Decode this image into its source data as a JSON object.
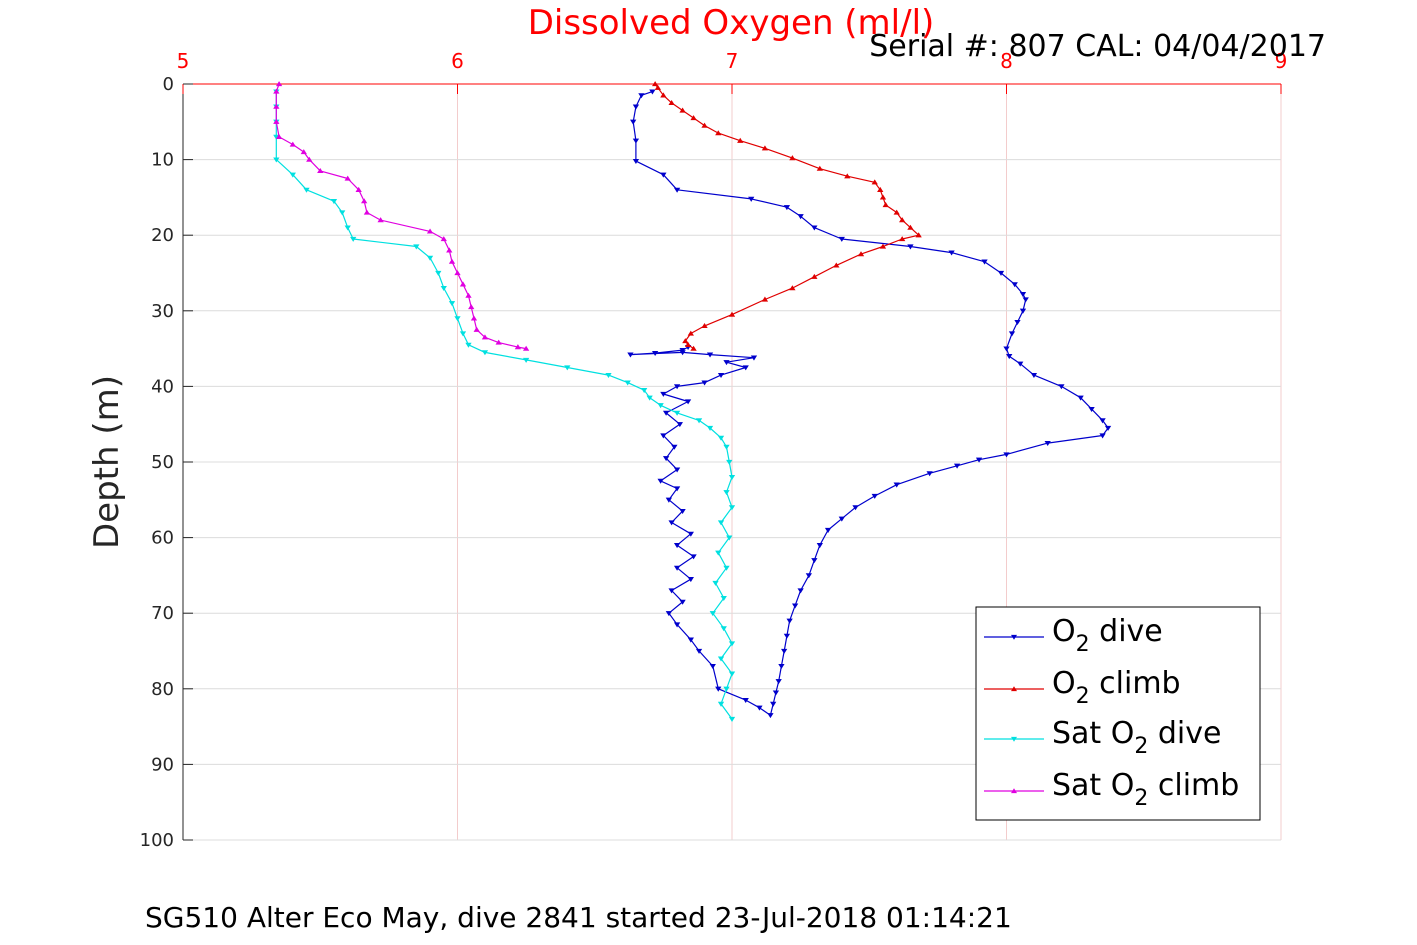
{
  "chart_data": {
    "type": "line",
    "title": "Dissolved Oxygen (ml/l)",
    "serial_label": "Serial #: 807  CAL: 04/04/2017",
    "caption": "SG510 Alter Eco May, dive 2841 started 23-Jul-2018 01:14:21",
    "ylabel": "Depth (m)",
    "xlim": [
      5,
      9
    ],
    "ylim": [
      0,
      100
    ],
    "y_reversed": true,
    "x_axis_position": "top",
    "xticks": [
      5,
      6,
      7,
      8,
      9
    ],
    "yticks": [
      0,
      10,
      20,
      30,
      40,
      50,
      60,
      70,
      80,
      90,
      100
    ],
    "grid": true,
    "legend_position": "lower-right",
    "legend": [
      "O2 dive",
      "O2 climb",
      "Sat O2 dive",
      "Sat O2 climb"
    ],
    "series": [
      {
        "name": "O2 dive",
        "color": "#0000cc",
        "marker": "triangle-down",
        "points": [
          [
            6.71,
            1
          ],
          [
            6.67,
            1.5
          ],
          [
            6.65,
            3
          ],
          [
            6.64,
            5
          ],
          [
            6.65,
            7.5
          ],
          [
            6.65,
            10.2
          ],
          [
            6.75,
            12
          ],
          [
            6.8,
            14
          ],
          [
            7.07,
            15.2
          ],
          [
            7.2,
            16.3
          ],
          [
            7.25,
            17.5
          ],
          [
            7.3,
            19
          ],
          [
            7.4,
            20.5
          ],
          [
            7.65,
            21.5
          ],
          [
            7.8,
            22.3
          ],
          [
            7.92,
            23.5
          ],
          [
            7.98,
            25
          ],
          [
            8.03,
            26.5
          ],
          [
            8.06,
            27.8
          ],
          [
            8.07,
            28.5
          ],
          [
            8.06,
            30
          ],
          [
            8.04,
            31.5
          ],
          [
            8.02,
            33
          ],
          [
            8.0,
            35
          ],
          [
            8.01,
            36
          ],
          [
            8.05,
            37
          ],
          [
            8.1,
            38.5
          ],
          [
            8.2,
            40
          ],
          [
            8.27,
            41.5
          ],
          [
            8.31,
            43
          ],
          [
            8.35,
            44.5
          ],
          [
            8.37,
            45.5
          ],
          [
            8.35,
            46.5
          ],
          [
            8.15,
            47.5
          ],
          [
            8.0,
            49
          ],
          [
            7.9,
            49.7
          ],
          [
            7.82,
            50.5
          ],
          [
            7.72,
            51.5
          ],
          [
            7.6,
            53
          ],
          [
            7.52,
            54.5
          ],
          [
            7.45,
            56
          ],
          [
            7.4,
            57.5
          ],
          [
            7.35,
            59
          ],
          [
            7.32,
            61
          ],
          [
            7.3,
            63
          ],
          [
            7.28,
            65
          ],
          [
            7.25,
            67
          ],
          [
            7.23,
            69
          ],
          [
            7.21,
            71
          ],
          [
            7.2,
            73
          ],
          [
            7.19,
            75
          ],
          [
            7.18,
            77
          ],
          [
            7.17,
            79
          ],
          [
            7.16,
            80.5
          ],
          [
            7.15,
            82
          ],
          [
            7.14,
            83.5
          ],
          [
            7.1,
            82.5
          ],
          [
            7.05,
            81.5
          ],
          [
            6.95,
            80
          ],
          [
            6.93,
            77
          ],
          [
            6.88,
            75
          ],
          [
            6.85,
            73.5
          ],
          [
            6.8,
            71.5
          ],
          [
            6.77,
            70
          ],
          [
            6.82,
            68.5
          ],
          [
            6.78,
            67
          ],
          [
            6.85,
            65.5
          ],
          [
            6.8,
            64
          ],
          [
            6.86,
            62.5
          ],
          [
            6.8,
            61
          ],
          [
            6.85,
            59.5
          ],
          [
            6.78,
            58
          ],
          [
            6.82,
            56.5
          ],
          [
            6.77,
            55
          ],
          [
            6.8,
            53.5
          ],
          [
            6.74,
            52.5
          ],
          [
            6.8,
            51
          ],
          [
            6.76,
            49.5
          ],
          [
            6.79,
            48
          ],
          [
            6.75,
            46.5
          ],
          [
            6.81,
            45
          ],
          [
            6.76,
            43.5
          ],
          [
            6.84,
            42
          ],
          [
            6.75,
            41
          ],
          [
            6.8,
            40
          ],
          [
            6.9,
            39.5
          ],
          [
            6.96,
            38.5
          ],
          [
            7.05,
            37.5
          ],
          [
            6.98,
            36.8
          ],
          [
            7.08,
            36.2
          ],
          [
            6.92,
            35.8
          ],
          [
            6.82,
            35.5
          ],
          [
            6.63,
            35.8
          ],
          [
            6.72,
            35.6
          ],
          [
            6.82,
            35.2
          ],
          [
            6.84,
            34.8
          ]
        ]
      },
      {
        "name": "O2 climb",
        "color": "#e00000",
        "marker": "triangle-up",
        "points": [
          [
            6.72,
            0
          ],
          [
            6.73,
            0.5
          ],
          [
            6.75,
            1.5
          ],
          [
            6.78,
            2.5
          ],
          [
            6.82,
            3.5
          ],
          [
            6.86,
            4.5
          ],
          [
            6.9,
            5.5
          ],
          [
            6.95,
            6.5
          ],
          [
            7.03,
            7.5
          ],
          [
            7.12,
            8.5
          ],
          [
            7.22,
            9.8
          ],
          [
            7.32,
            11.2
          ],
          [
            7.42,
            12.2
          ],
          [
            7.52,
            13
          ],
          [
            7.54,
            14
          ],
          [
            7.55,
            15
          ],
          [
            7.56,
            16
          ],
          [
            7.6,
            17
          ],
          [
            7.62,
            18
          ],
          [
            7.65,
            19
          ],
          [
            7.68,
            20
          ],
          [
            7.62,
            20.5
          ],
          [
            7.55,
            21.5
          ],
          [
            7.47,
            22.5
          ],
          [
            7.38,
            24
          ],
          [
            7.3,
            25.5
          ],
          [
            7.22,
            27
          ],
          [
            7.12,
            28.5
          ],
          [
            7.0,
            30.5
          ],
          [
            6.9,
            32
          ],
          [
            6.85,
            33
          ],
          [
            6.83,
            34
          ],
          [
            6.84,
            34.5
          ],
          [
            6.86,
            35
          ]
        ]
      },
      {
        "name": "Sat O2 dive",
        "color": "#00e0e0",
        "marker": "triangle-down",
        "points": [
          [
            5.34,
            1
          ],
          [
            5.34,
            3
          ],
          [
            5.34,
            5
          ],
          [
            5.34,
            7
          ],
          [
            5.34,
            10
          ],
          [
            5.4,
            12
          ],
          [
            5.45,
            14
          ],
          [
            5.55,
            15.5
          ],
          [
            5.58,
            17
          ],
          [
            5.6,
            19
          ],
          [
            5.62,
            20.5
          ],
          [
            5.85,
            21.5
          ],
          [
            5.9,
            23
          ],
          [
            5.93,
            25
          ],
          [
            5.95,
            27
          ],
          [
            5.98,
            29
          ],
          [
            6.0,
            31
          ],
          [
            6.02,
            33
          ],
          [
            6.04,
            34.5
          ],
          [
            6.1,
            35.5
          ],
          [
            6.25,
            36.5
          ],
          [
            6.4,
            37.5
          ],
          [
            6.55,
            38.5
          ],
          [
            6.62,
            39.5
          ],
          [
            6.68,
            40.5
          ],
          [
            6.7,
            41.5
          ],
          [
            6.74,
            42.5
          ],
          [
            6.8,
            43.5
          ],
          [
            6.88,
            44.5
          ],
          [
            6.92,
            45.5
          ],
          [
            6.96,
            46.8
          ],
          [
            6.98,
            48
          ],
          [
            6.99,
            50
          ],
          [
            7.0,
            52
          ],
          [
            6.98,
            54
          ],
          [
            7.0,
            56
          ],
          [
            6.96,
            58
          ],
          [
            6.99,
            60
          ],
          [
            6.95,
            62
          ],
          [
            6.98,
            64
          ],
          [
            6.94,
            66
          ],
          [
            6.97,
            68
          ],
          [
            6.93,
            70
          ],
          [
            6.97,
            72
          ],
          [
            7.0,
            74
          ],
          [
            6.96,
            76
          ],
          [
            7.0,
            78
          ],
          [
            6.98,
            80
          ],
          [
            6.96,
            82
          ],
          [
            7.0,
            84
          ]
        ]
      },
      {
        "name": "Sat O2 climb",
        "color": "#e000e0",
        "marker": "triangle-up",
        "points": [
          [
            5.35,
            0
          ],
          [
            5.34,
            1
          ],
          [
            5.34,
            3
          ],
          [
            5.34,
            5
          ],
          [
            5.35,
            7
          ],
          [
            5.4,
            8
          ],
          [
            5.44,
            9
          ],
          [
            5.46,
            10
          ],
          [
            5.5,
            11.5
          ],
          [
            5.6,
            12.5
          ],
          [
            5.64,
            14
          ],
          [
            5.66,
            15.5
          ],
          [
            5.67,
            17
          ],
          [
            5.72,
            18
          ],
          [
            5.9,
            19.5
          ],
          [
            5.95,
            20.5
          ],
          [
            5.97,
            22
          ],
          [
            5.98,
            23.5
          ],
          [
            6.0,
            25
          ],
          [
            6.02,
            26.5
          ],
          [
            6.04,
            28
          ],
          [
            6.05,
            29.5
          ],
          [
            6.06,
            31
          ],
          [
            6.07,
            32.5
          ],
          [
            6.1,
            33.5
          ],
          [
            6.15,
            34.2
          ],
          [
            6.22,
            34.8
          ],
          [
            6.25,
            35
          ]
        ]
      }
    ]
  }
}
